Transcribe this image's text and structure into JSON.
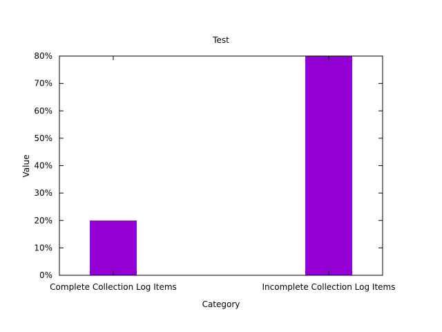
{
  "chart_data": {
    "type": "bar",
    "title": "Test",
    "xlabel": "Category",
    "ylabel": "Value",
    "categories": [
      "Complete Collection Log Items",
      "Incomplete Collection Log Items"
    ],
    "values": [
      20,
      80
    ],
    "ylim": [
      0,
      80
    ],
    "yticks": [
      0,
      10,
      20,
      30,
      40,
      50,
      60,
      70,
      80
    ],
    "ytick_suffix": "%",
    "bar_color": "#9400d3",
    "grid": false,
    "legend": "none"
  }
}
